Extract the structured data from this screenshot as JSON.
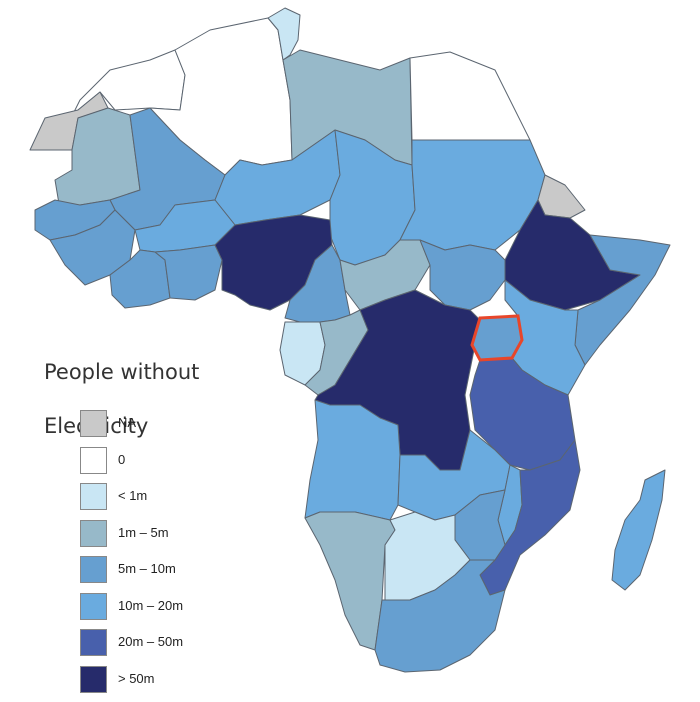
{
  "legend": {
    "title_line1": "People without",
    "title_line2": "Electricity",
    "items": [
      {
        "label": "NA",
        "color": "#c9c9c9"
      },
      {
        "label": "0",
        "color": "#ffffff"
      },
      {
        "label": "< 1m",
        "color": "#c9e6f4"
      },
      {
        "label": "1m – 5m",
        "color": "#97b9c9"
      },
      {
        "label": "5m – 10m",
        "color": "#669fd0"
      },
      {
        "label": "10m – 20m",
        "color": "#6aabdf"
      },
      {
        "label": "20m – 50m",
        "color": "#4860ac"
      },
      {
        "label": "> 50m",
        "color": "#262b6b"
      }
    ]
  },
  "highlight": {
    "country": "uganda",
    "color": "#e8462a"
  },
  "countries": {
    "morocco": "0",
    "algeria": "0",
    "tunisia": "< 1m",
    "libya": "1m – 5m",
    "egypt": "0",
    "western_sahara": "NA",
    "mauritania": "1m – 5m",
    "mali": "5m – 10m",
    "niger": "10m – 20m",
    "chad": "10m – 20m",
    "sudan": "10m – 20m",
    "eritrea": "NA",
    "ethiopia": "> 50m",
    "somalia": "5m – 10m",
    "senegal": "5m – 10m",
    "guinea": "5m – 10m",
    "burkina_faso": "10m – 20m",
    "ivory_coast": "5m – 10m",
    "ghana": "5m – 10m",
    "nigeria": "> 50m",
    "cameroon": "5m – 10m",
    "car": "1m – 5m",
    "south_sudan": "5m – 10m",
    "gabon": "< 1m",
    "congo": "1m – 5m",
    "drc": "> 50m",
    "uganda": "5m – 10m",
    "kenya": "10m – 20m",
    "tanzania": "20m – 50m",
    "angola": "10m – 20m",
    "zambia": "10m – 20m",
    "malawi": "10m – 20m",
    "mozambique": "20m – 50m",
    "zimbabwe": "5m – 10m",
    "namibia": "1m – 5m",
    "botswana": "< 1m",
    "south_africa": "5m – 10m",
    "madagascar": "10m – 20m"
  }
}
